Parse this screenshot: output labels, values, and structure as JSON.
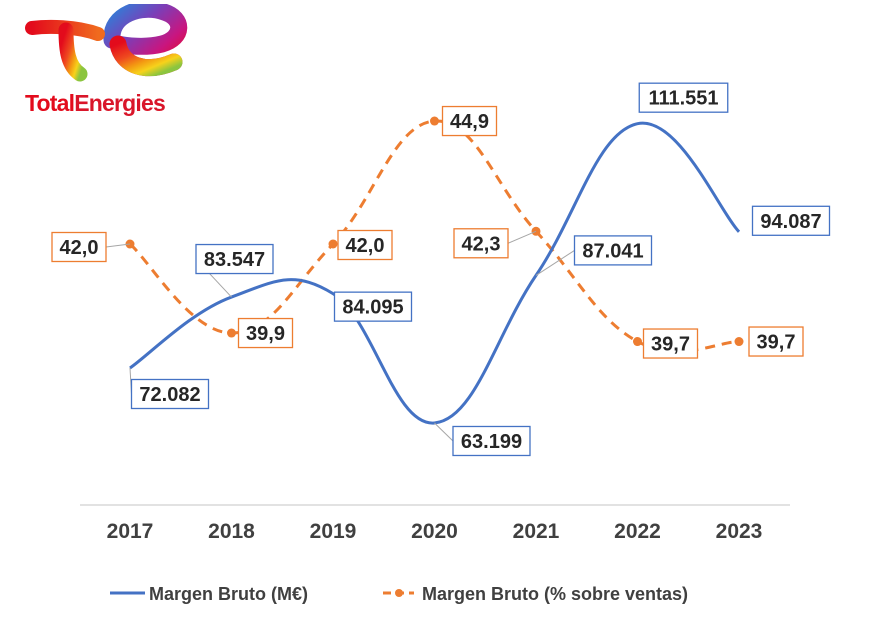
{
  "brand": {
    "name_part1": "Total",
    "name_part2": "Energies",
    "logo_icon": "totalenergies-logo-icon",
    "color_red": "#e30b1c",
    "color_text": "#d9162a"
  },
  "chart_data": {
    "type": "line",
    "title": "",
    "xlabel": "",
    "ylabel": "",
    "categories": [
      "2017",
      "2018",
      "2019",
      "2020",
      "2021",
      "2022",
      "2023"
    ],
    "series": [
      {
        "name": "Margen Bruto (M€)",
        "values": [
          72082,
          83547,
          84095,
          63199,
          87041,
          111551,
          94087
        ],
        "labels": [
          "72.082",
          "83.547",
          "84.095",
          "63.199",
          "87.041",
          "111.551",
          "94.087"
        ],
        "color": "#4472c4",
        "style": "solid"
      },
      {
        "name": "Margen Bruto (% sobre ventas)",
        "values": [
          42.0,
          39.9,
          42.0,
          44.9,
          42.3,
          39.7,
          39.7
        ],
        "labels": [
          "42,0",
          "39,9",
          "42,0",
          "44,9",
          "42,3",
          "39,7",
          "39,7"
        ],
        "color": "#ed7d31",
        "style": "dashed"
      }
    ],
    "legend_position": "bottom",
    "grid": false
  }
}
